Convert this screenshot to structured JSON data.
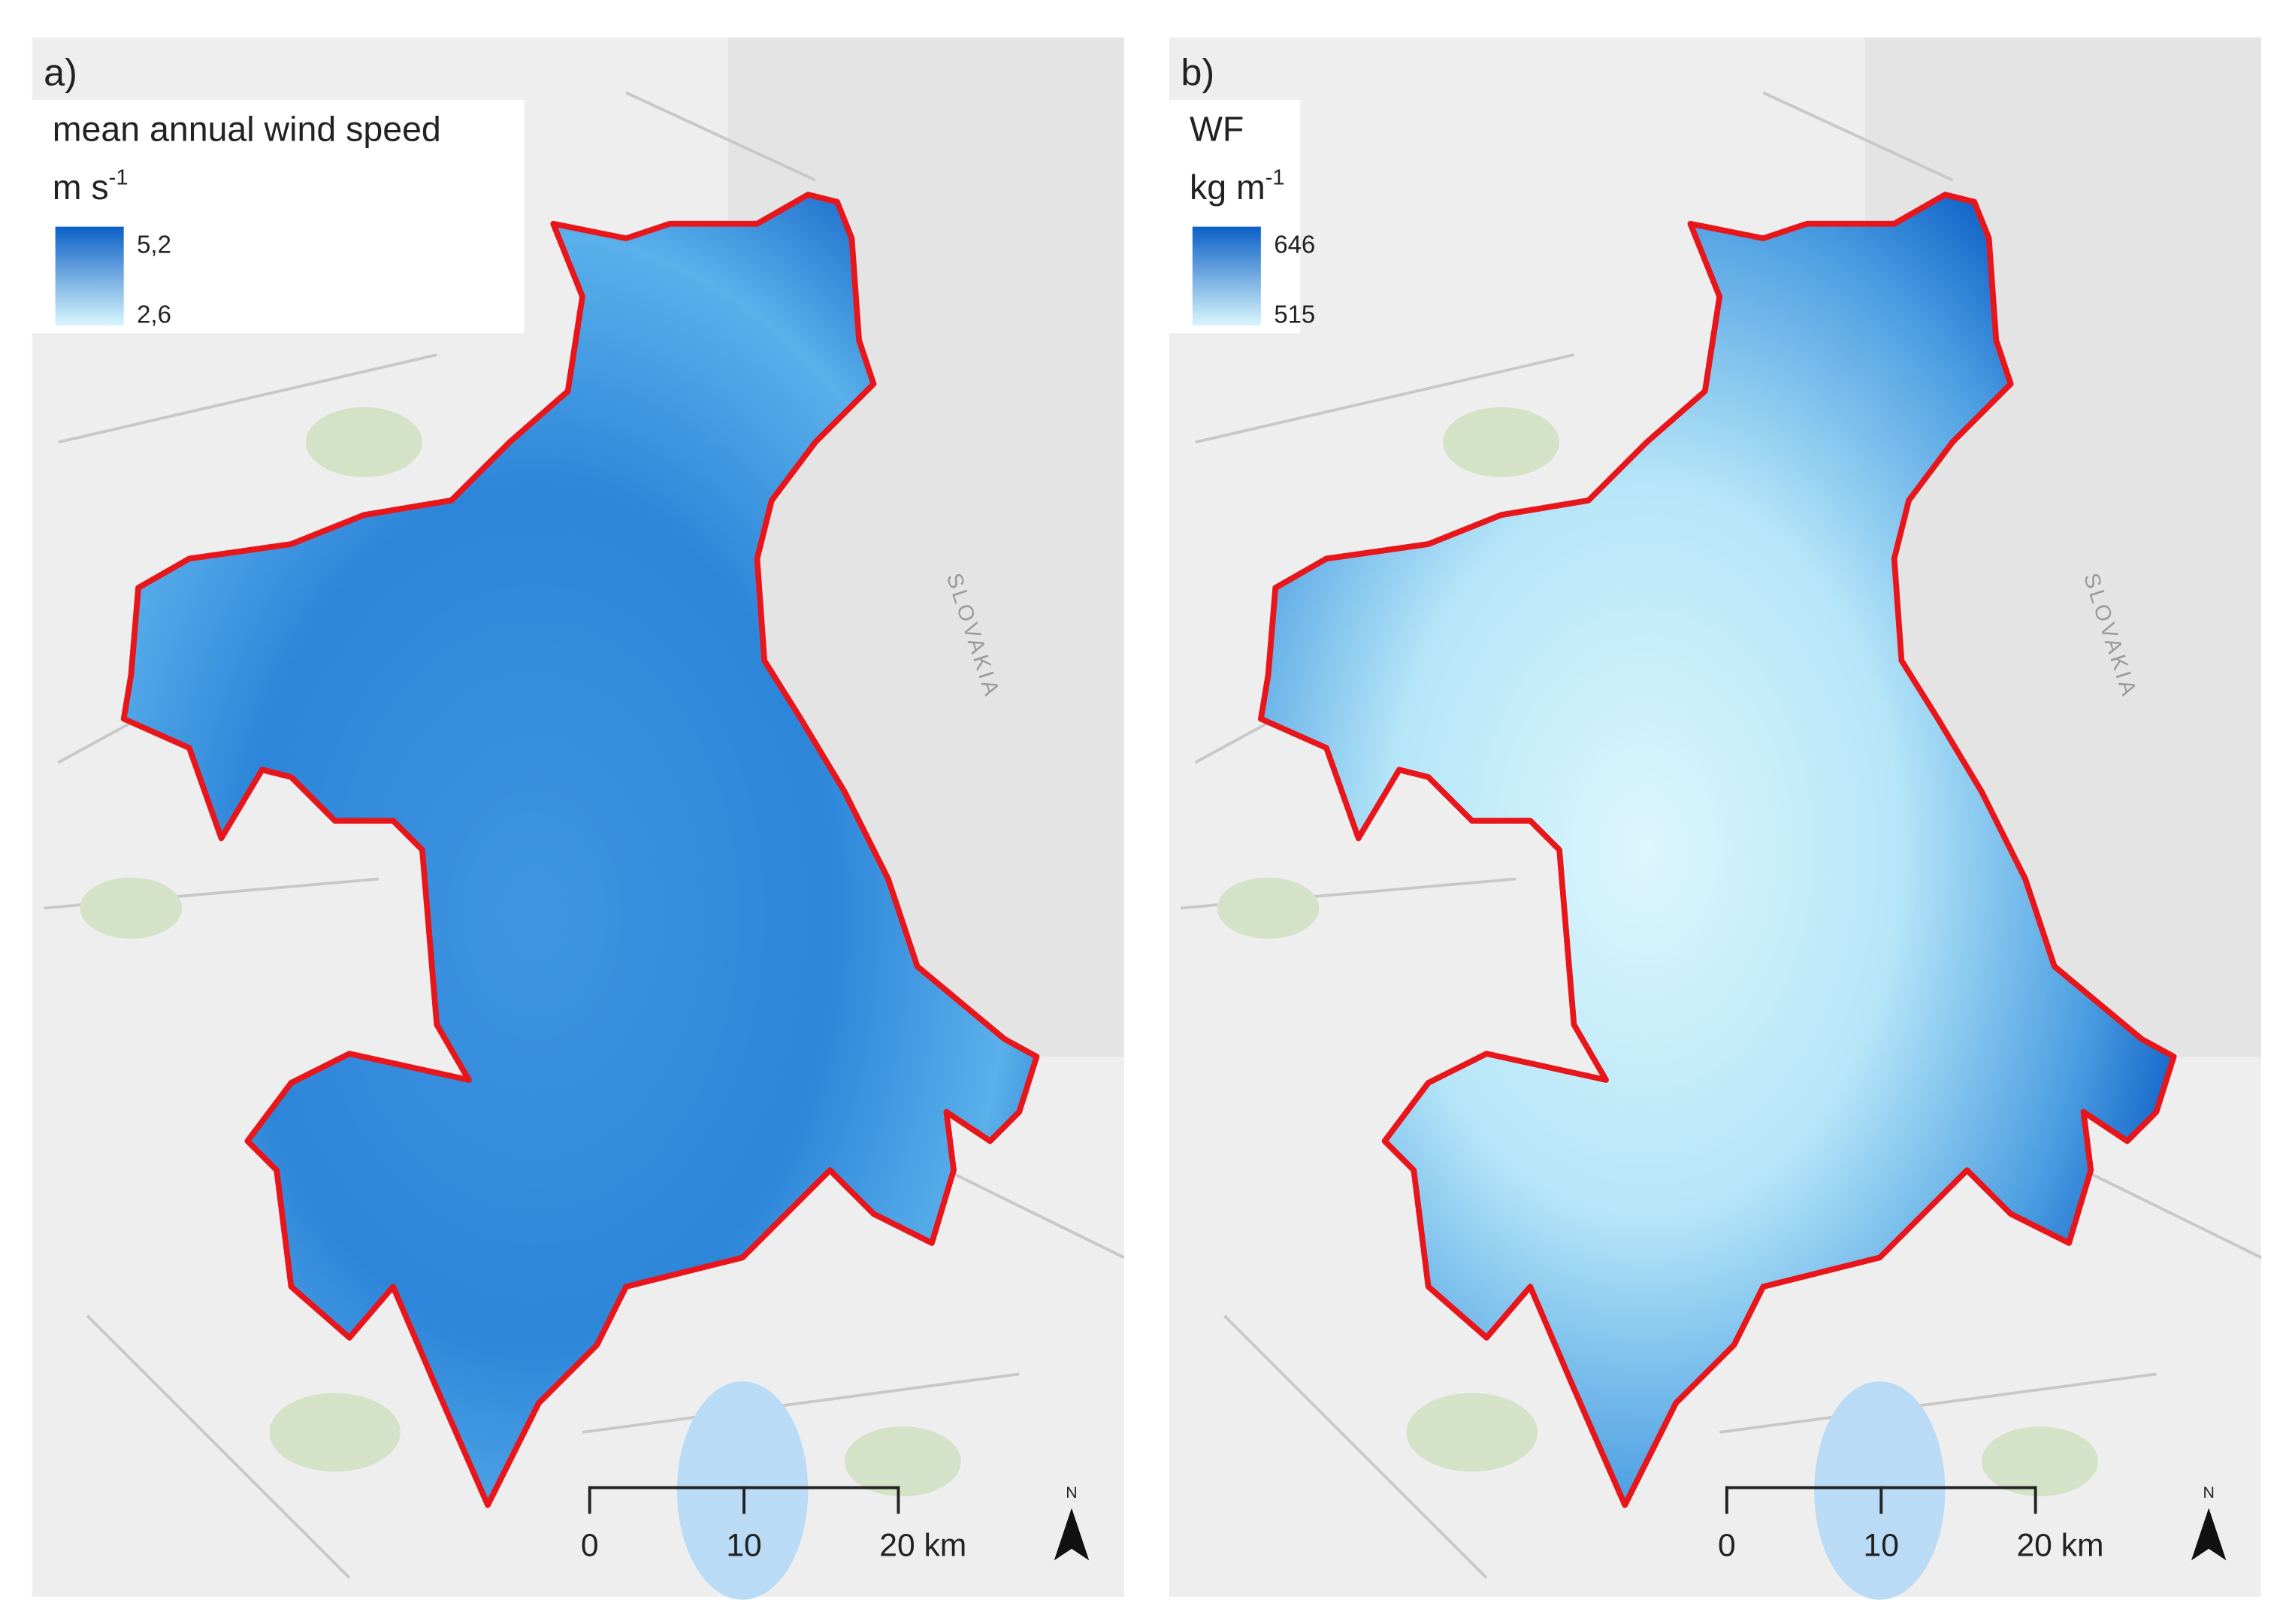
{
  "panels": [
    {
      "label": "a)",
      "legend": {
        "title": "mean annual wind speed",
        "unit": "m s",
        "unit_exponent": "-1",
        "max": "5,2",
        "min": "2,6"
      },
      "scale": [
        "0",
        "10",
        "20 km"
      ],
      "country": "SLOVAKIA",
      "north": "N"
    },
    {
      "label": "b)",
      "legend": {
        "title": "WF",
        "unit": "kg m",
        "unit_exponent": "-1",
        "max": "646",
        "min": "515"
      },
      "scale": [
        "0",
        "10",
        "20 km"
      ],
      "country": "SLOVAKIA",
      "north": "N"
    }
  ]
}
